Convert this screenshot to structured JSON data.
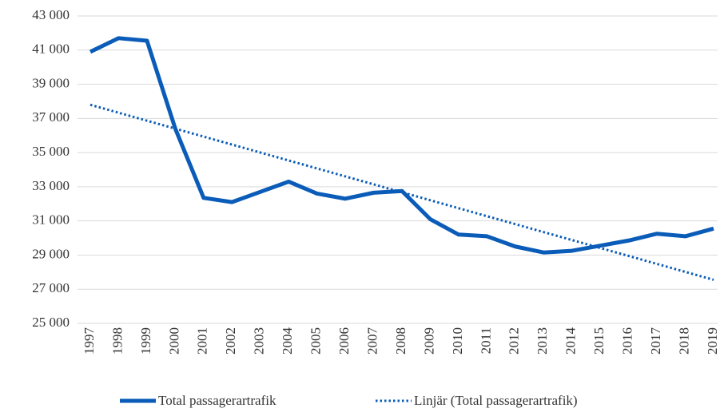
{
  "chart_data": {
    "type": "line",
    "categories": [
      "1997",
      "1998",
      "1999",
      "2000",
      "2001",
      "2002",
      "2003",
      "2004",
      "2005",
      "2006",
      "2007",
      "2008",
      "2009",
      "2010",
      "2011",
      "2012",
      "2013",
      "2014",
      "2015",
      "2016",
      "2017",
      "2018",
      "2019"
    ],
    "series": [
      {
        "name": "Total passagerartrafik",
        "color": "#0a5cb8",
        "style": "solid",
        "values": [
          40900,
          41700,
          41550,
          36400,
          32350,
          32100,
          32700,
          33300,
          32600,
          32300,
          32650,
          32750,
          31100,
          30200,
          30100,
          29500,
          29150,
          29250,
          29550,
          29850,
          30250,
          30100,
          30550
        ]
      },
      {
        "name": "Linjär (Total passagerartrafik)",
        "color": "#0a5cb8",
        "style": "dotted",
        "values": [
          37800,
          37334,
          36868,
          36402,
          35936,
          35470,
          35005,
          34539,
          34073,
          33607,
          33141,
          32675,
          32209,
          31743,
          31277,
          30811,
          30345,
          29880,
          29414,
          28948,
          28482,
          28016,
          27550
        ]
      }
    ],
    "ylim": [
      25000,
      43000
    ],
    "yticks": [
      {
        "value": 25000,
        "label": "25 000"
      },
      {
        "value": 27000,
        "label": "27 000"
      },
      {
        "value": 29000,
        "label": "29 000"
      },
      {
        "value": 31000,
        "label": "31 000"
      },
      {
        "value": 33000,
        "label": "33 000"
      },
      {
        "value": 35000,
        "label": "35 000"
      },
      {
        "value": 37000,
        "label": "37 000"
      },
      {
        "value": 39000,
        "label": "39 000"
      },
      {
        "value": 41000,
        "label": "41 000"
      },
      {
        "value": 43000,
        "label": "43 000"
      }
    ],
    "grid": true,
    "legend": "bottom"
  }
}
